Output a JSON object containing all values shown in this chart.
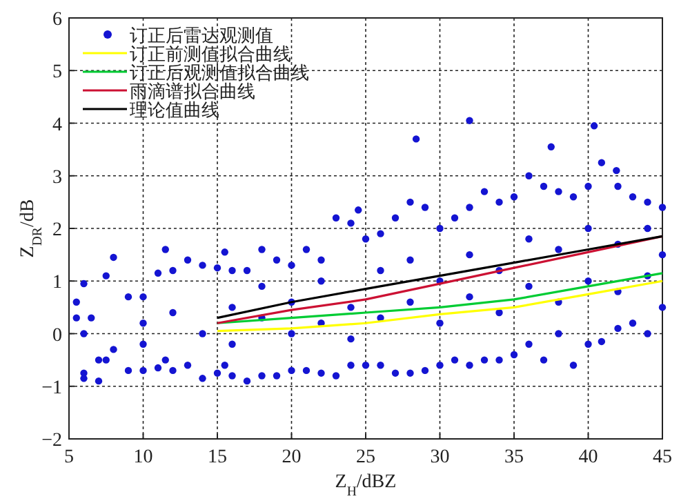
{
  "chart_data": {
    "type": "scatter",
    "xlabel": "Z$_{H}$/dBZ",
    "ylabel": "Z$_{DR}$/dB",
    "xlim": [
      5,
      45
    ],
    "xticks": [
      5,
      10,
      15,
      20,
      25,
      30,
      35,
      40,
      45
    ],
    "ylim": [
      -2,
      6
    ],
    "yticks": [
      -2,
      -1,
      0,
      1,
      2,
      3,
      4,
      5,
      6
    ],
    "grid": true,
    "legend": "top left",
    "series": [
      {
        "name": "订正后雷达观测值",
        "marker": "circle",
        "color": "#1414d2",
        "x": [
          5.5,
          5.5,
          6,
          6,
          6,
          6,
          6.5,
          7,
          7,
          7.5,
          7.5,
          8,
          8,
          9,
          9,
          10,
          10,
          11,
          11,
          11.5,
          11.5,
          12,
          12,
          13,
          13,
          14,
          14,
          15,
          15,
          15.5,
          15.5,
          16,
          16,
          17,
          17,
          18,
          18,
          19,
          19,
          20,
          20,
          21,
          21,
          22,
          22,
          23,
          23,
          24,
          24,
          24.5,
          25,
          25,
          26,
          26,
          27,
          27,
          28,
          28,
          28.4,
          29,
          29,
          30,
          30,
          31,
          31,
          32,
          32,
          32,
          33,
          33,
          34,
          34,
          35,
          35,
          36,
          36,
          37,
          37,
          37.5,
          38,
          38,
          39,
          39,
          40,
          40,
          40.4,
          40.9,
          40.9,
          41.9,
          42,
          42,
          43,
          43,
          44,
          44,
          45,
          45,
          10,
          10,
          12,
          14,
          16,
          16,
          18,
          18,
          20,
          20,
          22,
          22,
          24,
          24,
          26,
          26,
          28,
          28,
          30,
          30,
          32,
          32,
          34,
          34,
          36,
          36,
          38,
          38,
          40,
          40,
          42,
          42,
          44,
          44,
          45
        ],
        "values": [
          0.6,
          0.3,
          0.95,
          0,
          -0.75,
          -0.85,
          0.3,
          -0.9,
          -0.5,
          1.1,
          -0.5,
          1.45,
          -0.3,
          0.7,
          -0.7,
          0.7,
          -0.7,
          1.15,
          -0.65,
          1.6,
          -0.5,
          1.2,
          -0.7,
          1.4,
          -0.6,
          1.3,
          -0.85,
          1.25,
          -0.75,
          1.55,
          -0.6,
          1.2,
          -0.8,
          1.2,
          -0.9,
          1.6,
          -0.8,
          1.4,
          -0.8,
          1.3,
          -0.7,
          1.6,
          -0.7,
          1.4,
          -0.75,
          2.2,
          -0.8,
          2.1,
          -0.6,
          2.35,
          1.8,
          -0.6,
          1.9,
          -0.6,
          2.2,
          -0.75,
          2.5,
          -0.75,
          3.7,
          2.4,
          -0.7,
          2.0,
          -0.6,
          2.2,
          -0.5,
          4.05,
          2.4,
          -0.6,
          2.7,
          -0.5,
          2.5,
          -0.5,
          2.6,
          -0.4,
          3.0,
          -0.2,
          2.8,
          -0.5,
          3.55,
          2.7,
          0,
          2.6,
          -0.6,
          2.8,
          -0.2,
          3.95,
          3.25,
          -0.15,
          3.1,
          2.8,
          0.1,
          2.6,
          0.2,
          2.5,
          0,
          2.4,
          0.5,
          0.2,
          -0.2,
          0.4,
          0,
          0.5,
          -0.2,
          0.3,
          0.9,
          0,
          0.6,
          0.2,
          1.0,
          0.5,
          -0.1,
          0.3,
          1.2,
          0.6,
          1.4,
          0.2,
          1.0,
          0.7,
          1.5,
          0.4,
          1.2,
          0.9,
          1.8,
          0.6,
          1.6,
          1.0,
          2.0,
          0.8,
          1.7,
          1.1,
          2.0,
          1.5
        ]
      },
      {
        "name": "订正前测值拟合曲线",
        "type": "line",
        "color": "#ffff00",
        "x": [
          15,
          20,
          25,
          30,
          35,
          40,
          45
        ],
        "values": [
          0.05,
          0.1,
          0.2,
          0.37,
          0.5,
          0.75,
          1.0
        ]
      },
      {
        "name": "订正后观测值拟合曲线",
        "type": "line",
        "color": "#00cc33",
        "x": [
          15,
          20,
          25,
          30,
          35,
          40,
          45
        ],
        "values": [
          0.2,
          0.3,
          0.4,
          0.5,
          0.65,
          0.9,
          1.15
        ]
      },
      {
        "name": "雨滴谱拟合曲线",
        "type": "line",
        "color": "#cc1133",
        "x": [
          15,
          20,
          25,
          30,
          35,
          40,
          45
        ],
        "values": [
          0.2,
          0.45,
          0.65,
          0.95,
          1.25,
          1.55,
          1.85
        ]
      },
      {
        "name": "理论值曲线",
        "type": "line",
        "color": "#000000",
        "x": [
          15,
          20,
          25,
          30,
          35,
          40,
          45
        ],
        "values": [
          0.3,
          0.6,
          0.85,
          1.1,
          1.35,
          1.6,
          1.85
        ]
      }
    ]
  }
}
